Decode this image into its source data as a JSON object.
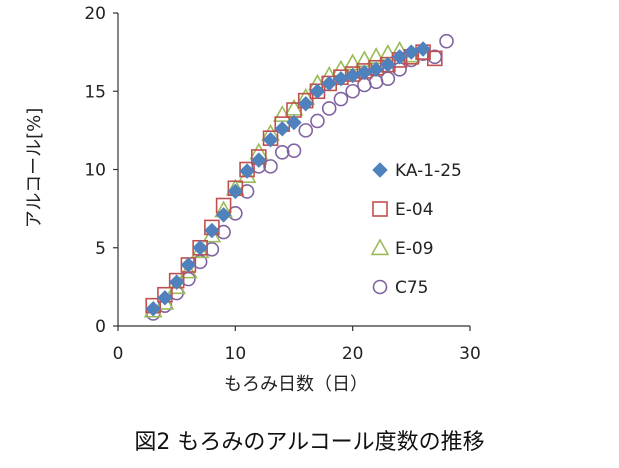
{
  "chart_data": {
    "type": "scatter",
    "xlabel": "もろみ日数（日）",
    "ylabel": "アルコール[%]",
    "xlim": [
      0,
      30
    ],
    "ylim": [
      0,
      20
    ],
    "x_ticks": [
      "0",
      "10",
      "20",
      "30"
    ],
    "y_ticks": [
      "0",
      "5",
      "10",
      "15",
      "20"
    ],
    "grid": false,
    "legend_position": "right",
    "series": [
      {
        "name": "KA-1-25",
        "marker": "diamond-filled",
        "color": "#4f81bd",
        "x": [
          3,
          4,
          5,
          6,
          7,
          8,
          9,
          10,
          11,
          12,
          13,
          14,
          15,
          16,
          17,
          18,
          19,
          20,
          21,
          22,
          23,
          24,
          25,
          26
        ],
        "y": [
          1.1,
          1.8,
          2.8,
          3.9,
          5.0,
          6.1,
          7.1,
          8.6,
          9.9,
          10.6,
          11.9,
          12.6,
          13.0,
          14.2,
          15.0,
          15.5,
          15.8,
          16.0,
          16.2,
          16.4,
          16.7,
          17.2,
          17.5,
          17.7
        ]
      },
      {
        "name": "E-04",
        "marker": "square-open",
        "color": "#c0504d",
        "x": [
          3,
          4,
          5,
          6,
          7,
          8,
          9,
          10,
          11,
          12,
          13,
          14,
          15,
          16,
          17,
          18,
          19,
          20,
          21,
          22,
          23,
          24,
          25,
          26,
          27
        ],
        "y": [
          1.3,
          2.0,
          2.9,
          3.9,
          5.0,
          6.3,
          7.7,
          8.8,
          10.0,
          10.8,
          12.0,
          12.9,
          13.8,
          14.4,
          15.0,
          15.5,
          15.9,
          16.1,
          16.3,
          16.5,
          16.7,
          17.0,
          17.2,
          17.5,
          17.1
        ]
      },
      {
        "name": "E-09",
        "marker": "triangle-open",
        "color": "#9bbb59",
        "x": [
          3,
          4,
          5,
          6,
          7,
          8,
          9,
          10,
          11,
          12,
          13,
          14,
          15,
          16,
          17,
          18,
          19,
          20,
          21,
          22,
          23,
          24,
          25
        ],
        "y": [
          1.0,
          1.5,
          2.5,
          3.5,
          4.8,
          5.8,
          7.4,
          8.8,
          9.6,
          11.1,
          12.3,
          13.5,
          13.9,
          14.6,
          15.5,
          16.0,
          16.4,
          16.8,
          17.0,
          17.2,
          17.4,
          17.6,
          17.3
        ]
      },
      {
        "name": "C75",
        "marker": "circle-open",
        "color": "#8064a2",
        "x": [
          3,
          4,
          5,
          6,
          7,
          8,
          9,
          10,
          11,
          12,
          13,
          14,
          15,
          16,
          17,
          18,
          19,
          20,
          21,
          22,
          23,
          24,
          25,
          26,
          27,
          28
        ],
        "y": [
          0.8,
          1.3,
          2.1,
          3.0,
          4.1,
          4.9,
          6.0,
          7.2,
          8.6,
          10.2,
          10.2,
          11.1,
          11.2,
          12.5,
          13.1,
          13.9,
          14.5,
          15.0,
          15.4,
          15.6,
          15.8,
          16.4,
          17.0,
          17.4,
          17.2,
          18.2
        ]
      }
    ]
  },
  "caption": "図2  もろみのアルコール度数の推移"
}
